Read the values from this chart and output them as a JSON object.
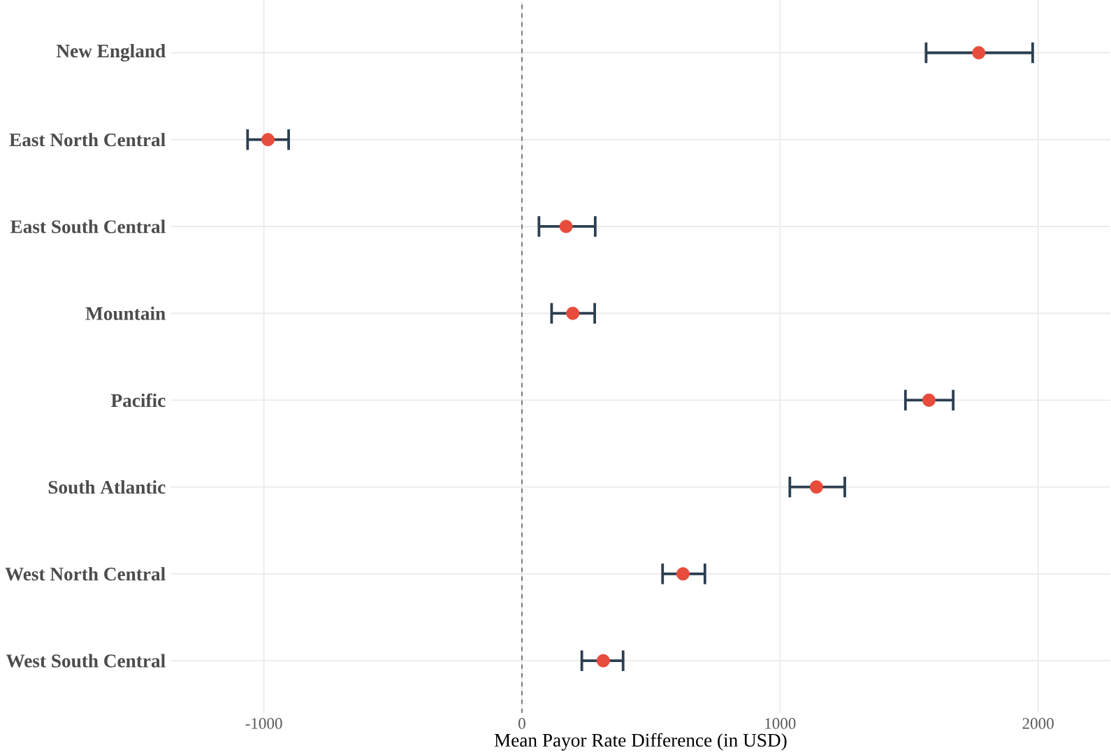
{
  "chart_data": {
    "type": "scatter",
    "orientation": "horizontal",
    "xlabel": "Mean Payor Rate Difference (in USD)",
    "categories": [
      "New England",
      "East North Central",
      "East South Central",
      "Mountain",
      "Pacific",
      "South Atlantic",
      "West North Central",
      "West South Central"
    ],
    "values": [
      1770,
      -984,
      171,
      197,
      1577,
      1141,
      624,
      315
    ],
    "errors": [
      [
        1566,
        1979
      ],
      [
        -1063,
        -904
      ],
      [
        66,
        284
      ],
      [
        115,
        282
      ],
      [
        1486,
        1671
      ],
      [
        1038,
        1251
      ],
      [
        545,
        709
      ],
      [
        232,
        392
      ]
    ],
    "color": "#e74c3c",
    "xlim": [
      -1360,
      2280
    ],
    "xticks": [
      -1000,
      0,
      1000,
      2000
    ],
    "ref_lines": [
      {
        "axis": "x",
        "value": 0,
        "color": "#666666",
        "line_style": "dashed"
      }
    ],
    "grid": true
  }
}
